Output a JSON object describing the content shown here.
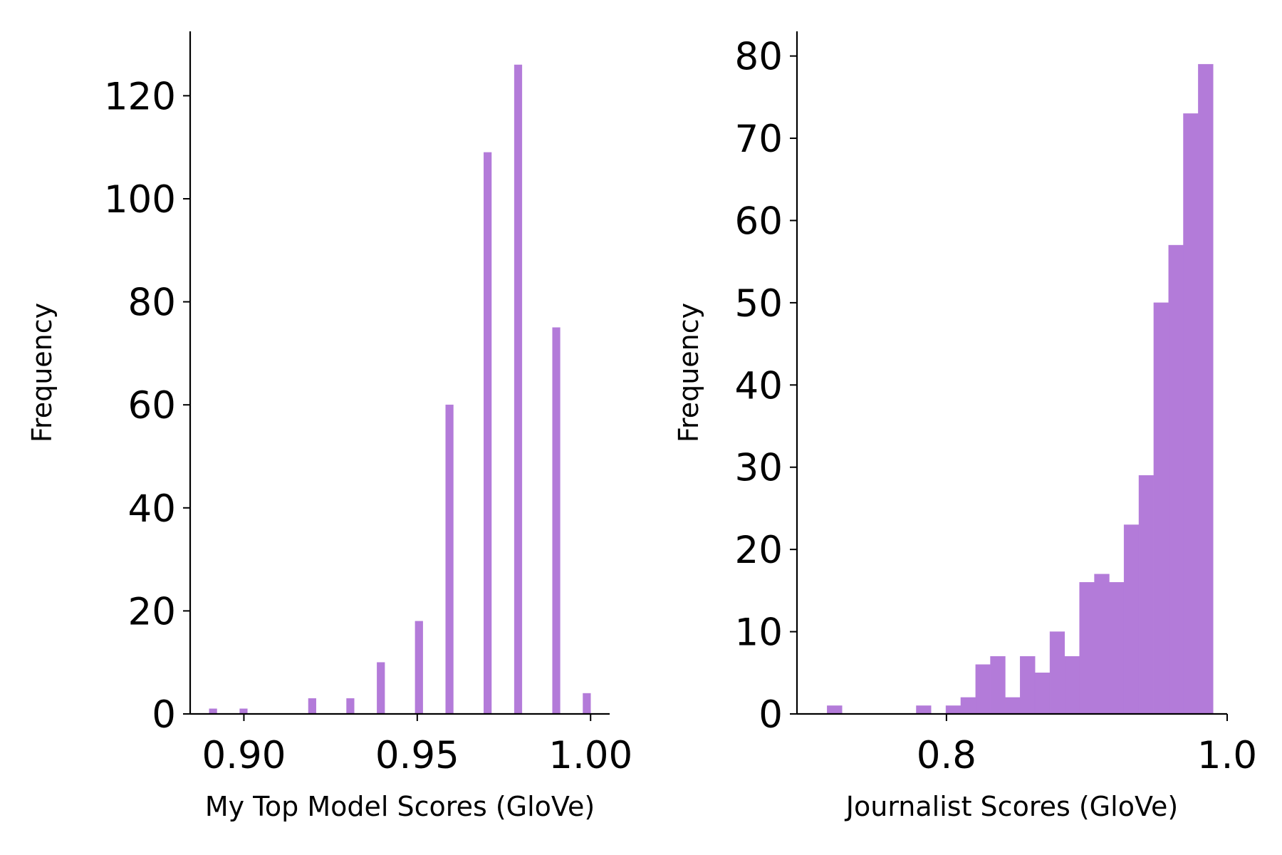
{
  "chart_data": [
    {
      "type": "histogram",
      "xlabel": "My Top Model Scores (GloVe)",
      "ylabel": "Frequency",
      "color": "#b37bd9",
      "bins": [
        0.89,
        0.8922,
        0.8944,
        0.8966,
        0.8988,
        0.901,
        0.9032,
        0.9054,
        0.9076,
        0.9098,
        0.912,
        0.9142,
        0.9164,
        0.9186,
        0.9208,
        0.923,
        0.9252,
        0.9274,
        0.9296,
        0.9318,
        0.934,
        0.9362,
        0.9384,
        0.9406,
        0.9428,
        0.945,
        0.9472,
        0.9494,
        0.9516,
        0.9538,
        0.956,
        0.9582,
        0.9604,
        0.9626,
        0.9648,
        0.967,
        0.9692,
        0.9714,
        0.9736,
        0.9758,
        0.978,
        0.9802,
        0.9824,
        0.9846,
        0.9868,
        0.989,
        0.9912,
        0.9934,
        0.9956,
        0.9978,
        1.0
      ],
      "values": [
        1,
        0,
        0,
        0,
        1,
        0,
        0,
        0,
        0,
        0,
        0,
        0,
        0,
        3,
        0,
        0,
        0,
        0,
        3,
        0,
        0,
        0,
        10,
        0,
        0,
        0,
        0,
        18,
        0,
        0,
        0,
        60,
        0,
        0,
        0,
        0,
        109,
        0,
        0,
        0,
        126,
        0,
        0,
        0,
        0,
        75,
        0,
        0,
        0,
        4
      ],
      "xlim": [
        0.8845,
        1.0055
      ],
      "ylim": [
        0,
        132.5
      ],
      "xticks": [
        {
          "value": 0.9,
          "label": "0.90"
        },
        0.95,
        {
          "value": 1.0,
          "label": "1.00"
        }
      ],
      "yticks": [
        0,
        20,
        40,
        60,
        80,
        100,
        120
      ]
    },
    {
      "type": "histogram",
      "xlabel": "Journalist Scores (GloVe)",
      "ylabel": "Frequency",
      "color": "#b37bd9",
      "bins": [
        0.715,
        0.7256,
        0.7362,
        0.7467,
        0.7573,
        0.7679,
        0.7785,
        0.789,
        0.7996,
        0.8102,
        0.8208,
        0.8313,
        0.8419,
        0.8525,
        0.8631,
        0.8737,
        0.8842,
        0.8948,
        0.9054,
        0.916,
        0.9265,
        0.9371,
        0.9477,
        0.9583,
        0.9688,
        0.9794,
        0.99
      ],
      "values": [
        1,
        0,
        0,
        0,
        0,
        0,
        1,
        0,
        1,
        2,
        6,
        7,
        2,
        7,
        5,
        10,
        7,
        16,
        17,
        16,
        23,
        29,
        50,
        57,
        73,
        79
      ],
      "xlim": [
        0.6935,
        1.0
      ],
      "ylim": [
        0,
        83
      ],
      "xticks": [
        0.8,
        {
          "value": 1.0,
          "label": "1.0"
        }
      ],
      "yticks": [
        0,
        10,
        20,
        30,
        40,
        50,
        60,
        70,
        80
      ]
    }
  ]
}
